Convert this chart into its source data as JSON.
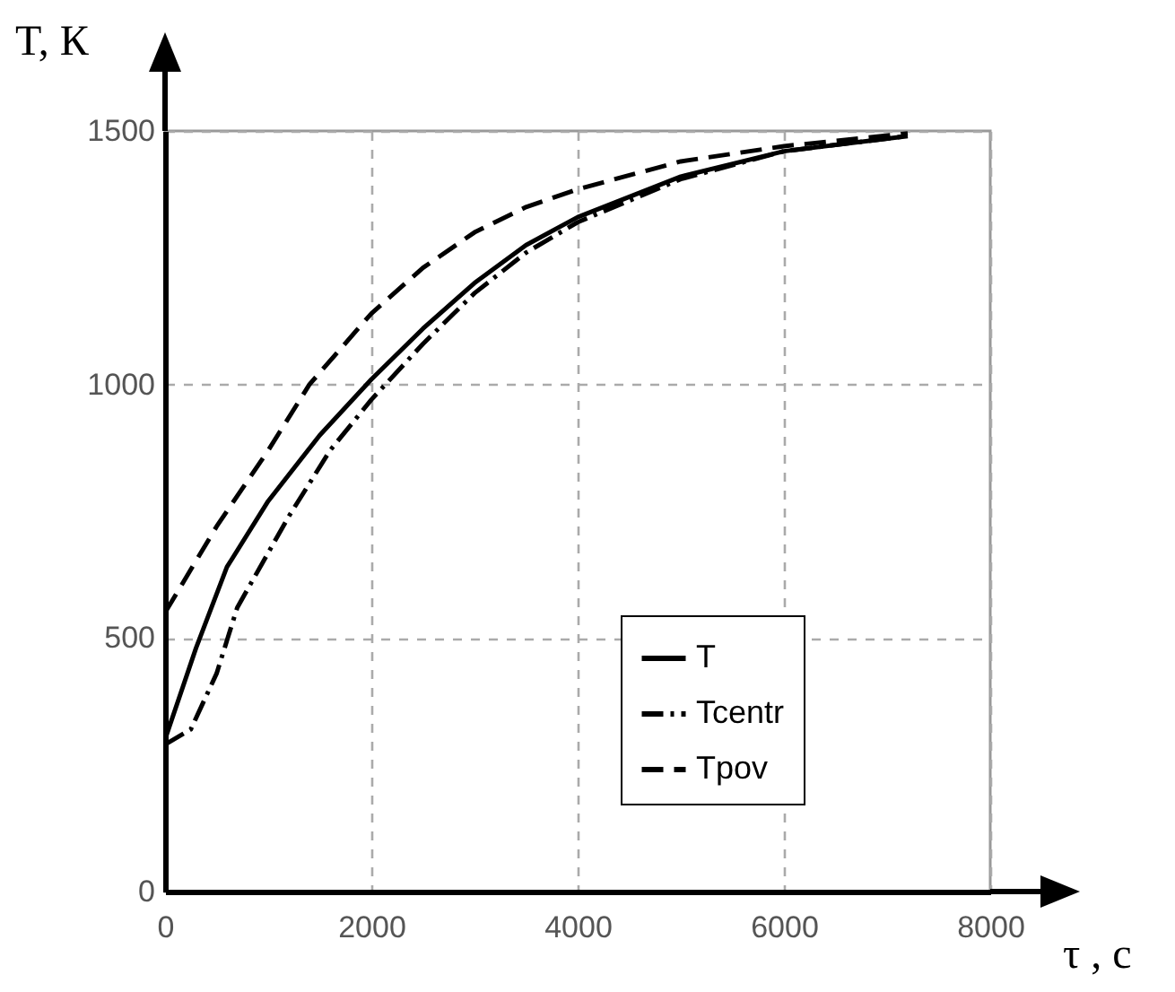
{
  "chart_data": {
    "type": "line",
    "xlabel": "τ , с",
    "ylabel": "T, К",
    "xlim": [
      0,
      8000
    ],
    "xticks": [
      0,
      2000,
      4000,
      6000,
      8000
    ],
    "ylim": [
      0,
      1500
    ],
    "yticks": [
      0,
      500,
      1000,
      1500
    ],
    "grid": true,
    "legend": "bottom right",
    "series": [
      {
        "name": "T",
        "color": "#000000",
        "line_style": "solid",
        "x": [
          0,
          300,
          600,
          1000,
          1500,
          2000,
          2500,
          3000,
          3500,
          4000,
          5000,
          6000,
          7200
        ],
        "values": [
          300,
          480,
          640,
          770,
          900,
          1010,
          1110,
          1200,
          1275,
          1330,
          1410,
          1460,
          1490
        ]
      },
      {
        "name": "Tcentr",
        "color": "#000000",
        "line_style": "dashdot",
        "x": [
          0,
          250,
          500,
          700,
          1200,
          1600,
          2000,
          2500,
          3000,
          3500,
          4000,
          5000,
          6000,
          7200
        ],
        "values": [
          290,
          320,
          430,
          560,
          740,
          870,
          970,
          1080,
          1180,
          1260,
          1320,
          1405,
          1460,
          1490
        ]
      },
      {
        "name": "Tpov",
        "color": "#000000",
        "line_style": "dashed",
        "x": [
          0,
          500,
          1000,
          1400,
          2000,
          2500,
          3000,
          3500,
          4000,
          5000,
          6000,
          7200
        ],
        "values": [
          550,
          720,
          870,
          1000,
          1140,
          1230,
          1300,
          1350,
          1385,
          1440,
          1470,
          1495
        ]
      }
    ]
  }
}
